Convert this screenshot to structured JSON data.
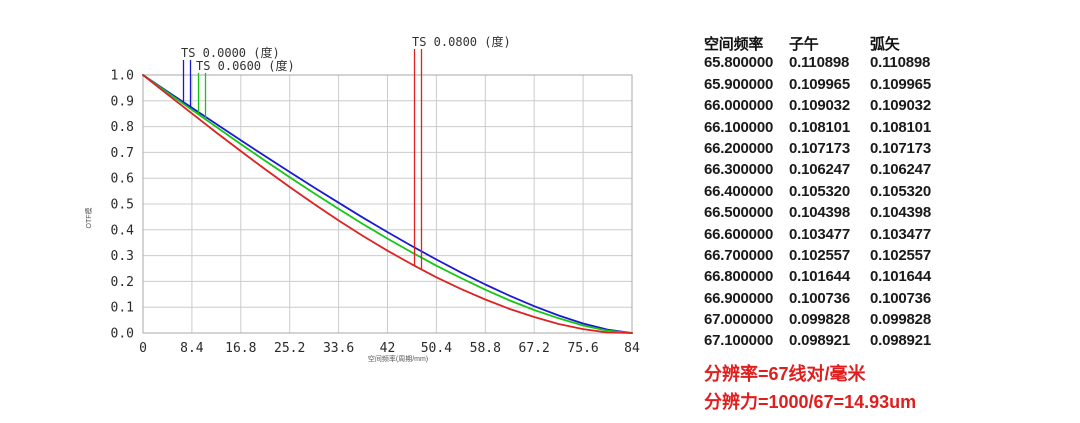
{
  "chart": {
    "x_ticks": [
      "0",
      "8.4",
      "16.8",
      "25.2",
      "33.6",
      "42",
      "50.4",
      "58.8",
      "67.2",
      "75.6",
      "84"
    ],
    "y_ticks": [
      "1.0",
      "0.9",
      "0.8",
      "0.7",
      "0.6",
      "0.5",
      "0.4",
      "0.3",
      "0.2",
      "0.1",
      "0.0"
    ],
    "grid_color": "#cccccc",
    "border_color": "#aaaaaa"
  },
  "chart_data": {
    "type": "line",
    "title": "",
    "xlabel": "空间频率(周期/mm)",
    "ylabel": "OTF模",
    "xlim": [
      0,
      84
    ],
    "ylim": [
      0,
      1
    ],
    "grid": true,
    "legend_position": "inline-leader-lines",
    "x": [
      0,
      4.2,
      8.4,
      12.6,
      16.8,
      21,
      25.2,
      29.4,
      33.6,
      37.8,
      42,
      46.2,
      50.4,
      54.6,
      58.8,
      63,
      67.2,
      71.4,
      75.6,
      79.8,
      84
    ],
    "series": [
      {
        "name": "TS 0.0000 (度)",
        "color": "#1a1acf",
        "values": [
          1.0,
          0.936,
          0.873,
          0.81,
          0.747,
          0.685,
          0.624,
          0.564,
          0.505,
          0.447,
          0.391,
          0.337,
          0.285,
          0.235,
          0.188,
          0.144,
          0.104,
          0.068,
          0.037,
          0.013,
          0.0
        ]
      },
      {
        "name": "TS 0.0600 (度)",
        "color": "#15c715",
        "values": [
          1.0,
          0.932,
          0.865,
          0.799,
          0.732,
          0.667,
          0.604,
          0.542,
          0.481,
          0.422,
          0.366,
          0.312,
          0.261,
          0.213,
          0.168,
          0.126,
          0.089,
          0.057,
          0.029,
          0.009,
          0.0
        ]
      },
      {
        "name": "TS 0.0800 (度)",
        "color": "#dd2222",
        "values": [
          1.0,
          0.925,
          0.851,
          0.777,
          0.705,
          0.634,
          0.566,
          0.5,
          0.436,
          0.376,
          0.319,
          0.266,
          0.216,
          0.171,
          0.13,
          0.093,
          0.062,
          0.035,
          0.015,
          0.002,
          0.0
        ]
      }
    ]
  },
  "table": {
    "headers": [
      "空间频率",
      "子午",
      "弧矢"
    ],
    "rows": [
      [
        "65.800000",
        "0.110898",
        "0.110898"
      ],
      [
        "65.900000",
        "0.109965",
        "0.109965"
      ],
      [
        "66.000000",
        "0.109032",
        "0.109032"
      ],
      [
        "66.100000",
        "0.108101",
        "0.108101"
      ],
      [
        "66.200000",
        "0.107173",
        "0.107173"
      ],
      [
        "66.300000",
        "0.106247",
        "0.106247"
      ],
      [
        "66.400000",
        "0.105320",
        "0.105320"
      ],
      [
        "66.500000",
        "0.104398",
        "0.104398"
      ],
      [
        "66.600000",
        "0.103477",
        "0.103477"
      ],
      [
        "66.700000",
        "0.102557",
        "0.102557"
      ],
      [
        "66.800000",
        "0.101644",
        "0.101644"
      ],
      [
        "66.900000",
        "0.100736",
        "0.100736"
      ],
      [
        "67.000000",
        "0.099828",
        "0.099828"
      ],
      [
        "67.100000",
        "0.098921",
        "0.098921"
      ]
    ]
  },
  "annotations": {
    "line1": "分辨率=67线对/毫米",
    "line2": "分辨力=1000/67=14.93um",
    "color": "#e01e1e"
  }
}
